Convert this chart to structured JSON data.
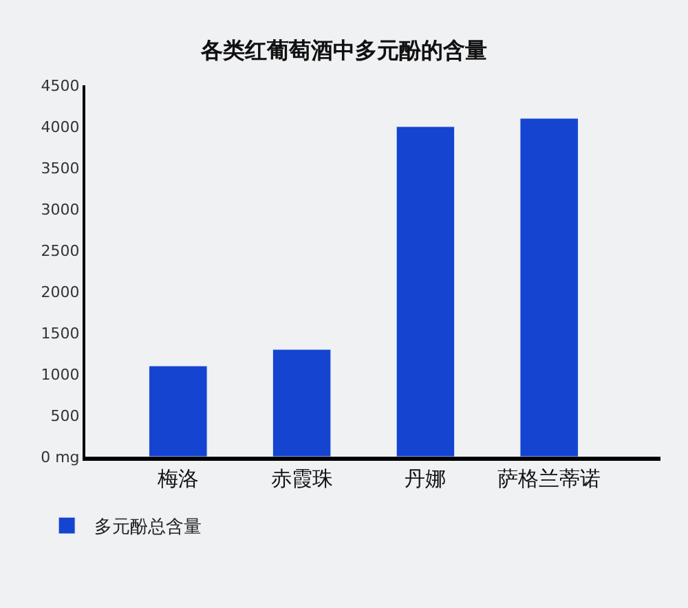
{
  "chart_data": {
    "type": "bar",
    "title": "各类红葡萄酒中多元酚的含量",
    "categories": [
      "梅洛",
      "赤霞珠",
      "丹娜",
      "萨格兰蒂诺"
    ],
    "series": [
      {
        "name": "多元酚总含量",
        "color": "#1444d0",
        "values": [
          1100,
          1300,
          4000,
          4100
        ]
      }
    ],
    "ylim": [
      0,
      4500
    ],
    "yticks": [
      {
        "value": 0,
        "label": "0 mg"
      },
      500,
      1000,
      1500,
      2000,
      2500,
      3000,
      3500,
      4000,
      4500
    ],
    "grid": false,
    "legend": "bottom left"
  }
}
